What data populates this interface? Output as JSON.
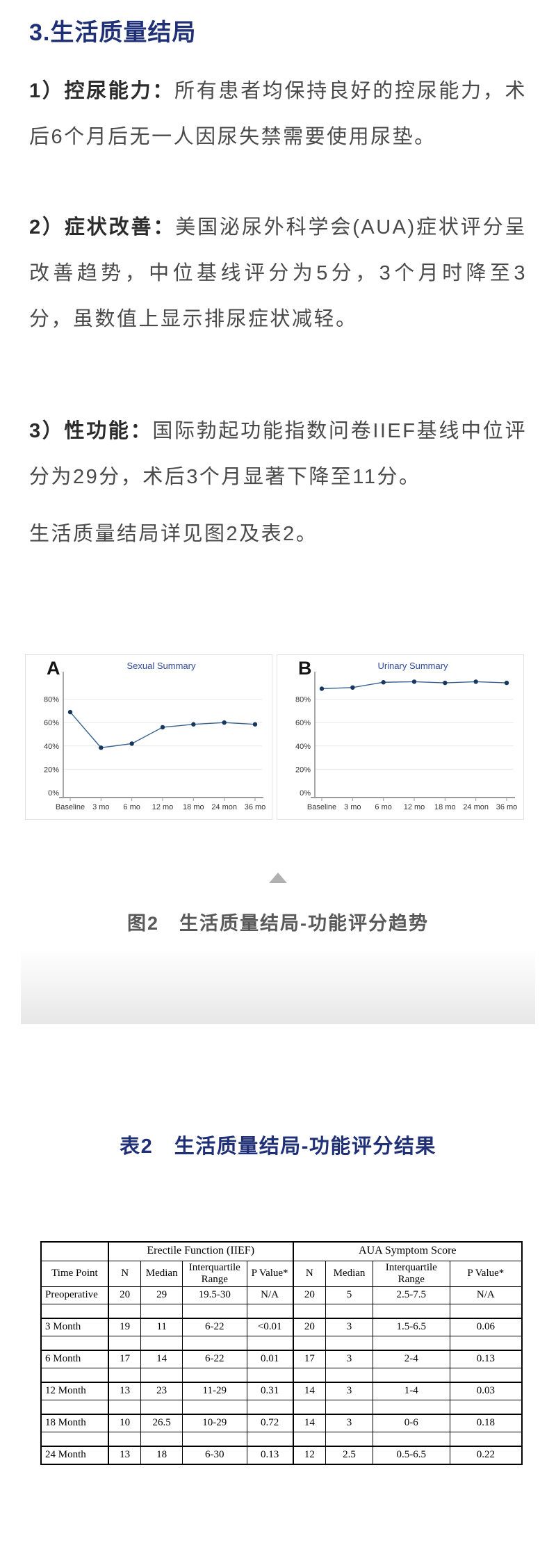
{
  "section": {
    "title": "3.生活质量结局"
  },
  "paragraphs": [
    {
      "lead": "1）控尿能力：",
      "text": "所有患者均保持良好的控尿能力，术后6个月后无一人因尿失禁需要使用尿垫。"
    },
    {
      "lead": "2）症状改善：",
      "text": "美国泌尿外科学会(AUA)症状评分呈改善趋势，中位基线评分为5分，3个月时降至3分，虽数值上显示排尿症状减轻。"
    },
    {
      "lead": "3）性功能：",
      "text": "国际勃起功能指数问卷IIEF基线中位评分为29分，术后3个月显著下降至11分。"
    },
    {
      "lead": "",
      "text": "生活质量结局详见图2及表2。"
    }
  ],
  "figure": {
    "caption": "图2　生活质量结局-功能评分趋势",
    "collapse_icon": "up-triangle-icon"
  },
  "chart_data": [
    {
      "type": "line",
      "panel_label": "A",
      "title": "Sexual Summary",
      "x": [
        "Baseline",
        "3 mo",
        "6 mo",
        "12 mo",
        "18 mo",
        "24 mon",
        "36 mo"
      ],
      "values": [
        69,
        38.5,
        42,
        56,
        58.5,
        60,
        58.5
      ],
      "ylim": [
        0,
        100
      ],
      "yticks": [
        0,
        20,
        40,
        60,
        80
      ],
      "ytick_suffix": "%",
      "grid": true,
      "legend": false
    },
    {
      "type": "line",
      "panel_label": "B",
      "title": "Urinary Summary",
      "x": [
        "Baseline",
        "3 mo",
        "6 mo",
        "12 mo",
        "18 mo",
        "24 mon",
        "36 mo"
      ],
      "values": [
        89,
        90,
        94.5,
        95,
        94,
        95,
        94
      ],
      "ylim": [
        0,
        100
      ],
      "yticks": [
        0,
        20,
        40,
        60,
        80
      ],
      "ytick_suffix": "%",
      "grid": true,
      "legend": false
    }
  ],
  "colors": {
    "heading": "#203077",
    "chart_title": "#2e4a9b",
    "series_line": "#35618c",
    "marker": "#17375e",
    "grid": "#e8e8e8",
    "axis": "#9a9a9a",
    "y_axis": "#6e6e6e",
    "tick_text": "#333333",
    "caption": "#595959",
    "triangle": "#b1b1b1"
  },
  "table": {
    "title": "表2　生活质量结局-功能评分结果",
    "group_headers": [
      {
        "label": "",
        "span": 1
      },
      {
        "label": "Erectile Function (IIEF)",
        "span": 4
      },
      {
        "label": "AUA Symptom Score",
        "span": 4
      }
    ],
    "columns": [
      "Time Point",
      "N",
      "Median",
      "Interquartile Range",
      "P Value*",
      "N",
      "Median",
      "Interquartile Range",
      "P Value*"
    ],
    "col_widths": [
      "14%",
      "6.8%",
      "8.6%",
      "13.4%",
      "9.6%",
      "6.8%",
      "9.8%",
      "16%",
      "15%"
    ],
    "rows": [
      [
        "Preoperative",
        "20",
        "29",
        "19.5-30",
        "N/A",
        "20",
        "5",
        "2.5-7.5",
        "N/A"
      ],
      [
        "3 Month",
        "19",
        "11",
        "6-22",
        "<0.01",
        "20",
        "3",
        "1.5-6.5",
        "0.06"
      ],
      [
        "6 Month",
        "17",
        "14",
        "6-22",
        "0.01",
        "17",
        "3",
        "2-4",
        "0.13"
      ],
      [
        "12 Month",
        "13",
        "23",
        "11-29",
        "0.31",
        "14",
        "3",
        "1-4",
        "0.03"
      ],
      [
        "18 Month",
        "10",
        "26.5",
        "10-29",
        "0.72",
        "14",
        "3",
        "0-6",
        "0.18"
      ],
      [
        "24 Month",
        "13",
        "18",
        "6-30",
        "0.13",
        "12",
        "2.5",
        "0.5-6.5",
        "0.22"
      ]
    ]
  }
}
